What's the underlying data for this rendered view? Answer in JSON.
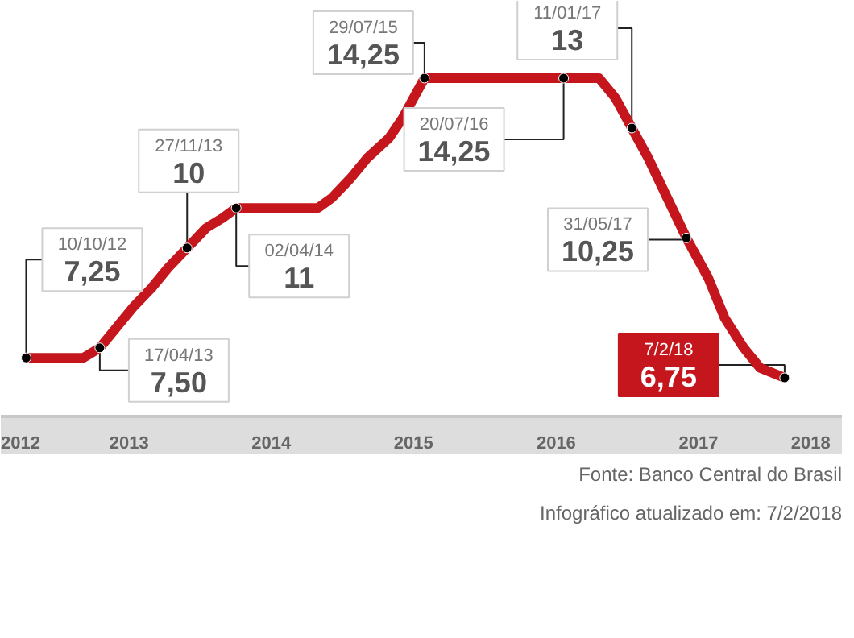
{
  "chart_data": {
    "type": "line",
    "xlim": [
      "2012-08-06",
      "2018-07-04"
    ],
    "xticks": [
      {
        "value": "2012-09-08",
        "label": "2012"
      },
      {
        "value": "2013-07-01",
        "label": "2013"
      },
      {
        "value": "2014-07-01",
        "label": "2014"
      },
      {
        "value": "2015-07-01",
        "label": "2015"
      },
      {
        "value": "2016-07-01",
        "label": "2016"
      },
      {
        "value": "2017-07-01",
        "label": "2017"
      },
      {
        "value": "2018-04-15",
        "label": "2018"
      }
    ],
    "tick_labels": "x",
    "line_style": "solid",
    "series": [
      {
        "marker": "none",
        "color": "#c4161c",
        "x": [
          "2012-10-10",
          "2013-03-06",
          "2013-04-17",
          "2013-05-29",
          "2013-07-10",
          "2013-08-28",
          "2013-10-09",
          "2013-11-27",
          "2014-01-15",
          "2014-02-26",
          "2014-04-02",
          "2014-10-29",
          "2014-12-03",
          "2015-01-21",
          "2015-03-04",
          "2015-04-29",
          "2015-06-03",
          "2015-07-29",
          "2016-07-20",
          "2016-10-19",
          "2016-11-30",
          "2017-01-11",
          "2017-02-22",
          "2017-04-12",
          "2017-05-31",
          "2017-07-26",
          "2017-09-06",
          "2017-10-25",
          "2017-12-06",
          "2018-02-07"
        ],
        "values": [
          7.25,
          7.25,
          7.5,
          8.0,
          8.5,
          9.0,
          9.5,
          10.0,
          10.5,
          10.75,
          11.0,
          11.0,
          11.25,
          11.75,
          12.25,
          12.75,
          13.25,
          14.25,
          14.25,
          14.25,
          13.75,
          13.0,
          12.25,
          11.25,
          10.25,
          9.25,
          8.25,
          7.5,
          7.0,
          6.75
        ]
      },
      {
        "type": "scatter",
        "marker": "circle",
        "color": "#000000",
        "x": [
          "2012-10-10",
          "2013-04-17",
          "2013-11-27",
          "2014-04-02",
          "2015-07-29",
          "2016-07-20",
          "2017-01-11",
          "2017-05-31",
          "2018-02-07"
        ],
        "values": [
          7.25,
          7.5,
          10,
          11,
          14.25,
          14.25,
          13,
          10.25,
          6.75
        ],
        "value_labels": [
          "7,25",
          "7,50",
          "10",
          "11",
          "14,25",
          "14,25",
          "13",
          "10,25",
          "6,75"
        ]
      }
    ],
    "annotations": [
      {
        "text": "10/10/12",
        "x": "2012-10-10",
        "y": 7.25
      },
      {
        "text": "17/04/13",
        "x": "2013-04-17",
        "y": 7.5
      },
      {
        "text": "27/11/13",
        "x": "2013-11-27",
        "y": 10
      },
      {
        "text": "02/04/14",
        "x": "2014-04-02",
        "y": 11
      },
      {
        "text": "29/07/15",
        "x": "2015-07-29",
        "y": 14.25
      },
      {
        "text": "20/07/16",
        "x": "2016-07-20",
        "y": 14.25
      },
      {
        "text": "11/01/17",
        "x": "2017-01-11",
        "y": 13
      },
      {
        "text": "31/05/17",
        "x": "2017-05-31",
        "y": 10.25
      },
      {
        "text": "7/2/18",
        "x": "2018-02-07",
        "y": 6.75
      },
      "Fonte: Banco Central do Brasil",
      "Infográfico atualizado em: 7/2/2018"
    ]
  }
}
